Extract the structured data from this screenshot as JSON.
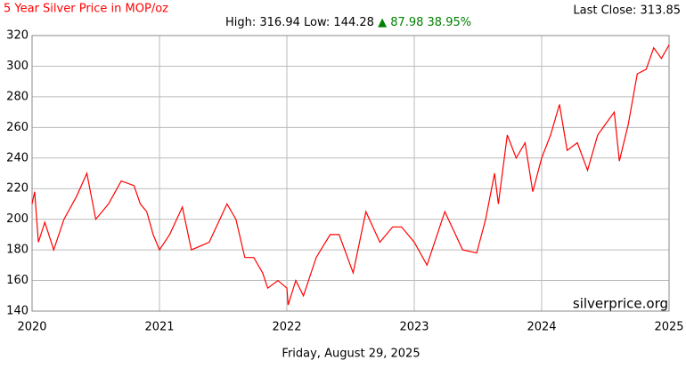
{
  "chart_data": {
    "type": "line",
    "title": "5 Year Silver Price in MOP/oz",
    "last_close": "Last Close: 313.85",
    "stats": {
      "high": "High: 316.94",
      "low": "Low: 144.28",
      "change": "▲ 87.98 38.95%"
    },
    "date": "Friday, August 29, 2025",
    "watermark": "silverprice.org",
    "x": [
      2020.0,
      2020.02,
      2020.05,
      2020.1,
      2020.17,
      2020.25,
      2020.35,
      2020.43,
      2020.5,
      2020.6,
      2020.7,
      2020.8,
      2020.85,
      2020.9,
      2020.95,
      2021.0,
      2021.08,
      2021.18,
      2021.25,
      2021.39,
      2021.53,
      2021.6,
      2021.67,
      2021.74,
      2021.81,
      2021.85,
      2021.93,
      2022.0,
      2022.01,
      2022.07,
      2022.13,
      2022.23,
      2022.34,
      2022.41,
      2022.52,
      2022.62,
      2022.73,
      2022.83,
      2022.9,
      2023.0,
      2023.1,
      2023.24,
      2023.38,
      2023.49,
      2023.56,
      2023.63,
      2023.66,
      2023.73,
      2023.8,
      2023.87,
      2023.93,
      2024.0,
      2024.07,
      2024.14,
      2024.2,
      2024.28,
      2024.36,
      2024.44,
      2024.5,
      2024.57,
      2024.61,
      2024.68,
      2024.75,
      2024.82,
      2024.88,
      2024.94,
      2025.0
    ],
    "series": [
      {
        "name": "Silver",
        "color": "#ff0000",
        "values": [
          210,
          218,
          185,
          198,
          180,
          200,
          215,
          230,
          200,
          210,
          225,
          222,
          210,
          205,
          190,
          180,
          190,
          208,
          180,
          185,
          210,
          200,
          175,
          175,
          165,
          155,
          160,
          155,
          144,
          160,
          150,
          175,
          190,
          190,
          165,
          205,
          185,
          195,
          195,
          185,
          170,
          205,
          180,
          178,
          200,
          230,
          210,
          255,
          240,
          250,
          218,
          240,
          255,
          275,
          245,
          250,
          232,
          255,
          262,
          270,
          238,
          262,
          295,
          298,
          312,
          305,
          313.85
        ]
      }
    ],
    "xlim": [
      2020,
      2025
    ],
    "xticks": [
      2020,
      2021,
      2022,
      2023,
      2024,
      2025
    ],
    "ylim": [
      140,
      320
    ],
    "yticks": [
      140,
      160,
      180,
      200,
      220,
      240,
      260,
      280,
      300,
      320
    ],
    "grid": true
  }
}
